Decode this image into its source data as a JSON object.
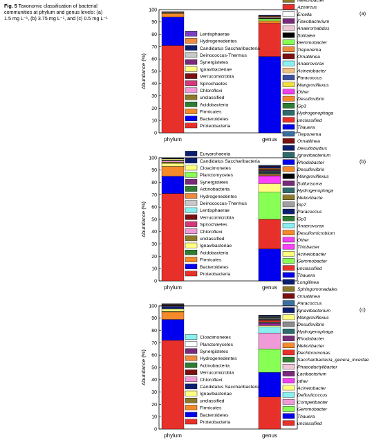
{
  "caption": {
    "label": "Fig. 5",
    "text": "Taxonomic classification of bacterial communities at phylum and genus levels: (a) 1.5 mg L⁻¹, (b) 3.75 mg L⁻¹, and (c) 0.5 mg L⁻¹"
  },
  "chart_data": [
    {
      "type": "bar",
      "stacked": true,
      "panel": "(a)",
      "ylabel": "Abundance  (%)",
      "ylim": [
        0,
        100
      ],
      "yticks": [
        0,
        10,
        20,
        30,
        40,
        50,
        60,
        70,
        80,
        90,
        100
      ],
      "categories": [
        "phylum",
        "genus"
      ],
      "phylum": {
        "legend": [
          "Lentisphaerae",
          "Hydrogenedentes",
          "Candidatus Saccharibacteria",
          "Deinococcus-Thermus",
          "Synergistetes",
          "Ignavibacteriae",
          "Verrucomicrobia",
          "Spirochaetes",
          "Chloroflexi",
          "unclassified",
          "Acidobacteria",
          "Firmicutes",
          "Bacteroidetes",
          "Proteobacteria"
        ],
        "colors": [
          "#7b3fc4",
          "#f08a3c",
          "#0b1f70",
          "#c8c8c8",
          "#7a2a7a",
          "#ffff80",
          "#7a1010",
          "#d4387a",
          "#f09ad8",
          "#8c7a2a",
          "#2e7d32",
          "#f58a2a",
          "#0000ee",
          "#e8302a"
        ],
        "values": [
          0,
          0,
          0,
          0,
          0,
          0,
          0,
          0,
          0.5,
          0.5,
          0.5,
          3,
          23,
          71
        ]
      },
      "genus": {
        "legend": [
          "Stappia",
          "Melioribacter",
          "Azoarcus",
          "Ercella",
          "Flavobacterium",
          "Anaerorhabdus",
          "Solitalea",
          "Gemmobacter",
          "Treponema",
          "Ornatilinea",
          "Anaerovorax",
          "Acinetobacter",
          "Paracoccus",
          "Mangroviflexus",
          "Other",
          "Desulfovibrio",
          "Gp3",
          "Hydrogenophaga",
          "unclassified",
          "Thauera"
        ],
        "colors": [
          "#0b1f70",
          "#8c7a2a",
          "#e8302a",
          "#ffffff",
          "#7a2a7a",
          "#f0c8d8",
          "#000000",
          "#88ff55",
          "#f08a3c",
          "#7a1010",
          "#88f0f0",
          "#f0c080",
          "#3b4fa0",
          "#f0e040",
          "#f040f0",
          "#f58a2a",
          "#2e7d32",
          "#2e6b6b",
          "#e8302a",
          "#0000ee"
        ],
        "values": [
          0.5,
          0.5,
          0.5,
          0.5,
          0.5,
          0,
          0.5,
          1.5,
          0,
          0,
          0,
          0,
          0,
          0,
          0,
          2,
          0,
          0,
          27,
          62
        ]
      }
    },
    {
      "type": "bar",
      "stacked": true,
      "panel": "(b)",
      "ylabel": "Abundance  (%)",
      "ylim": [
        0,
        100
      ],
      "yticks": [
        0,
        10,
        20,
        30,
        40,
        50,
        60,
        70,
        80,
        90,
        100
      ],
      "categories": [
        "phylum",
        "genus"
      ],
      "phylum": {
        "legend": [
          "Euryarchaeota",
          "Candidatus Saccharibacteria",
          "Cloacimonetes",
          "Planctomycetes",
          "Synergistetes",
          "Actinobacteria",
          "Hydrogenedentes",
          "Deinococcus-Thermus",
          "Lentisphaerae",
          "Verrucomicrobia",
          "Spirochaetes",
          "Chloroflexi",
          "unclassified",
          "Ignavibacteriae",
          "Acidobacteria",
          "Firmicutes",
          "Bacteroidetes",
          "Proteobacteria"
        ],
        "colors": [
          "#0b1f70",
          "#0b1f70",
          "#ffff80",
          "#88ff55",
          "#7a2a7a",
          "#2e7d32",
          "#f08a3c",
          "#c8c8c8",
          "#88f0f0",
          "#7a1010",
          "#d4387a",
          "#f09ad8",
          "#8c7a2a",
          "#ffff80",
          "#2e7d32",
          "#f58a2a",
          "#0000ee",
          "#e8302a"
        ],
        "values": [
          0.3,
          0.5,
          0.7,
          0.5,
          0.3,
          0,
          0,
          0,
          0,
          0,
          0,
          1,
          1,
          2.5,
          0,
          8,
          14,
          71
        ]
      },
      "genus": {
        "legend": [
          "Treponema",
          "Ornatilinea",
          "Desulfobulbus",
          "Ignavibacterium",
          "Rhodobacter",
          "Desulfovibrio",
          "Mangroviflexus",
          "Sulfurisoma",
          "Hydrogenophaga",
          "Melioribacte",
          "Gp7",
          "Paracoccus",
          "Gp3",
          "Anaerovorax",
          "Desulfomicrobium",
          "Other",
          "Thiobacter",
          "Acinetobacter",
          "Gemmobacter",
          "unclassified",
          "Thauera"
        ],
        "colors": [
          "#3b6fa0",
          "#7a1010",
          "#0b1f70",
          "#2e6b6b",
          "#0000ee",
          "#f58a2a",
          "#000000",
          "#7a2a7a",
          "#2e6b6b",
          "#8c7a2a",
          "#a0a0a0",
          "#0b1f70",
          "#2e7d32",
          "#88f0f0",
          "#f58a2a",
          "#f040f0",
          "#ff40ff",
          "#ffff80",
          "#88ff55",
          "#e8302a",
          "#0000ee"
        ],
        "values": [
          0.5,
          0.5,
          0.5,
          0.5,
          0.5,
          1,
          0.5,
          0.5,
          0.5,
          0.5,
          0.5,
          0.5,
          0.5,
          0.5,
          1,
          0.5,
          6,
          7,
          22,
          24,
          26
        ]
      }
    },
    {
      "type": "bar",
      "stacked": true,
      "panel": "(c)",
      "ylabel": "Abundance  (%)",
      "ylim": [
        0,
        100
      ],
      "yticks": [
        0,
        10,
        20,
        30,
        40,
        50,
        60,
        70,
        80,
        90,
        100
      ],
      "categories": [
        "phylum",
        "genus"
      ],
      "phylum": {
        "legend": [
          "Cloacimonetes",
          "Planctomycetes",
          "Synergistetes",
          "Hydrogenedentes",
          "Actinobacteria",
          "Verrucomicrobia",
          "Chloroflexi",
          "Candidatus Saccharibacteria",
          "Ignavibacteriae",
          "unclassified",
          "Firmicutes",
          "Bacteroidetes",
          "Proteobacteria"
        ],
        "colors": [
          "#88f0f0",
          "#ffffff",
          "#7a2a7a",
          "#f08a3c",
          "#2e7d32",
          "#7a1010",
          "#f09ad8",
          "#0b1f70",
          "#ffff80",
          "#8c7a2a",
          "#f58a2a",
          "#0000ee",
          "#e8302a"
        ],
        "values": [
          0.3,
          0.3,
          0.3,
          0.3,
          0.3,
          0.3,
          0.5,
          2,
          2,
          0.5,
          6,
          17,
          72
        ]
      },
      "genus": {
        "legend": [
          "Longilinea",
          "Sphingomonadales",
          "Ornatilinea",
          "Paracoccus",
          "Ignavibacterium",
          "Mangroviflexus",
          "Desulfovibrio",
          "Hydrogenophaga",
          "Rhodobacter",
          "Melioribacter",
          "Dechloromonas",
          "Saccharibacteria_genera_incertae",
          "Phaeodactylibacter",
          "Lacibacterium",
          "other",
          "Acinetobacter",
          "Defluviicoccus",
          "Competibacter",
          "Gemmobacter",
          "Thauera",
          "unclassified"
        ],
        "colors": [
          "#0b1f70",
          "#8c7a2a",
          "#7a1010",
          "#3b6fa0",
          "#0b1f70",
          "#ffff80",
          "#8c8c8c",
          "#2e6b6b",
          "#7a2a7a",
          "#f58a2a",
          "#e8302a",
          "#2e7d32",
          "#f0c8d8",
          "#7a2a7a",
          "#f040f0",
          "#ffff80",
          "#88f0f0",
          "#f09ad8",
          "#88ff55",
          "#0000ee",
          "#e8302a"
        ],
        "values": [
          0.5,
          0.3,
          0.3,
          0.5,
          0.4,
          0.5,
          0.5,
          0.5,
          0.5,
          0.5,
          1,
          0.5,
          0.5,
          1,
          1,
          1,
          5,
          13,
          19,
          20,
          26
        ]
      }
    }
  ]
}
